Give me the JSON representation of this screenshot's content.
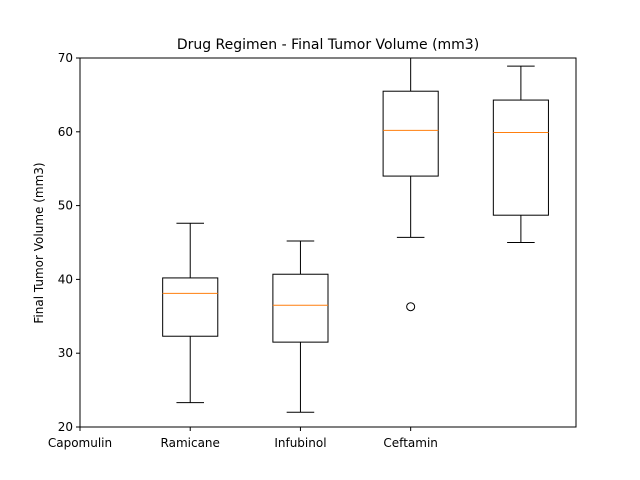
{
  "chart_data": {
    "type": "box",
    "title": "Drug Regimen - Final Tumor Volume (mm3)",
    "xlabel": "",
    "ylabel": "Final Tumor Volume (mm3)",
    "ylim": [
      20,
      70
    ],
    "yticks": [
      20,
      30,
      40,
      50,
      60,
      70
    ],
    "xlim": [
      1,
      5.5
    ],
    "xtick_positions": [
      1,
      2,
      3,
      4
    ],
    "xtick_labels": [
      "Capomulin",
      "Ramicane",
      "Infubinol",
      "Ceftamin"
    ],
    "grid": false,
    "legend": "none",
    "boxes": [
      {
        "position": 2,
        "whisker_low": 23.3,
        "q1": 32.3,
        "median": 38.1,
        "q3": 40.2,
        "whisker_high": 47.6,
        "outliers": []
      },
      {
        "position": 3,
        "whisker_low": 22.0,
        "q1": 31.5,
        "median": 36.5,
        "q3": 40.7,
        "whisker_high": 45.2,
        "outliers": []
      },
      {
        "position": 4,
        "whisker_low": 45.7,
        "q1": 54.0,
        "median": 60.2,
        "q3": 65.5,
        "whisker_high": 72.2,
        "outliers": [
          36.3
        ]
      },
      {
        "position": 5,
        "whisker_low": 45.0,
        "q1": 48.7,
        "median": 59.9,
        "q3": 64.3,
        "whisker_high": 68.9,
        "outliers": []
      }
    ],
    "colors": {
      "box": "#000000",
      "median": "#ff7f0e",
      "flier": "#000000"
    }
  }
}
